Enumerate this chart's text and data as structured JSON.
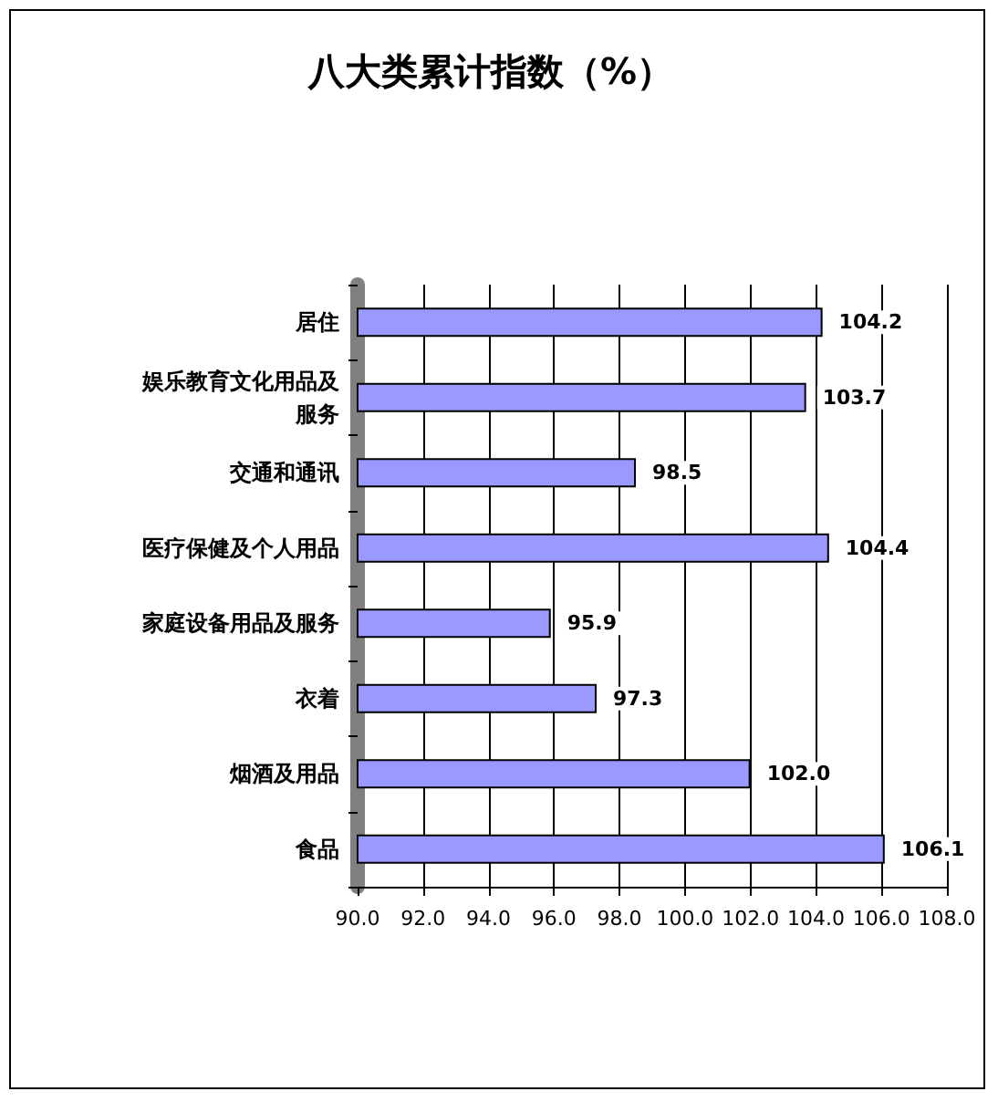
{
  "chart_data": {
    "type": "bar",
    "title": "八大类累计指数（%）",
    "orientation": "horizontal",
    "categories": [
      "居住",
      "娱乐教育文化用品及服务",
      "交通和通讯",
      "医疗保健及个人用品",
      "家庭设备用品及服务",
      "衣着",
      "烟酒及用品",
      "食品"
    ],
    "values": [
      104.2,
      103.7,
      98.5,
      104.4,
      95.9,
      97.3,
      102.0,
      106.1
    ],
    "value_labels": [
      "104.2",
      "103.7",
      "98.5",
      "104.4",
      "95.9",
      "97.3",
      "102.0",
      "106.1"
    ],
    "color": "#9999ff",
    "xlim": [
      90,
      108
    ],
    "xticks": [
      {
        "value": 90,
        "label": "90.0"
      },
      {
        "value": 92,
        "label": "92.0"
      },
      {
        "value": 94,
        "label": "94.0"
      },
      {
        "value": 96,
        "label": "96.0"
      },
      {
        "value": 98,
        "label": "98.0"
      },
      {
        "value": 100,
        "label": "100.0"
      },
      {
        "value": 102,
        "label": "102.0"
      },
      {
        "value": 104,
        "label": "104.0"
      },
      {
        "value": 106,
        "label": "106.0"
      },
      {
        "value": 108,
        "label": "108.0"
      }
    ],
    "grid": "x"
  }
}
